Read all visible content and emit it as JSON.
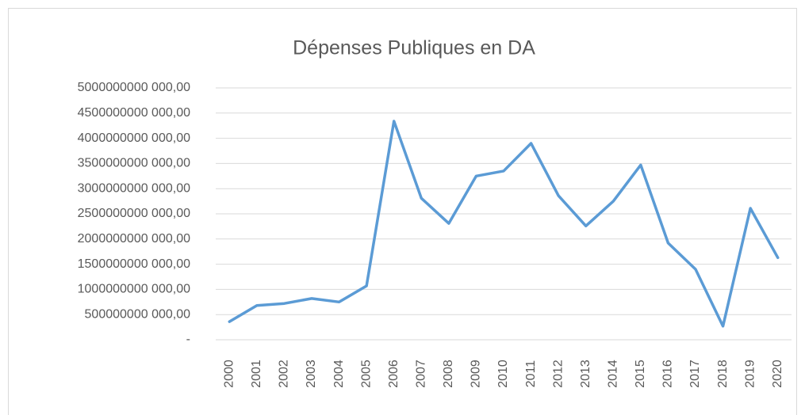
{
  "chart_data": {
    "type": "line",
    "title": "Dépenses Publiques en DA",
    "categories": [
      "2000",
      "2001",
      "2002",
      "2003",
      "2004",
      "2005",
      "2006",
      "2007",
      "2008",
      "2009",
      "2010",
      "2011",
      "2012",
      "2013",
      "2014",
      "2015",
      "2016",
      "2017",
      "2018",
      "2019",
      "2020"
    ],
    "series": [
      {
        "name": "Dépenses Publiques en DA",
        "color": "#5b9bd5",
        "values": [
          360000000000,
          680000000000,
          720000000000,
          820000000000,
          750000000000,
          1070000000000,
          4340000000000,
          2810000000000,
          2310000000000,
          3250000000000,
          3350000000000,
          3900000000000,
          2860000000000,
          2260000000000,
          2750000000000,
          3470000000000,
          1920000000000,
          1400000000000,
          270000000000,
          2610000000000,
          1630000000000
        ]
      }
    ],
    "ylim": [
      0,
      5000000000000
    ],
    "yticks": [
      {
        "value": 0,
        "label": "-"
      },
      {
        "value": 500000000000,
        "label": "500000000 000,00"
      },
      {
        "value": 1000000000000,
        "label": "1000000000 000,00"
      },
      {
        "value": 1500000000000,
        "label": "1500000000 000,00"
      },
      {
        "value": 2000000000000,
        "label": "2000000000 000,00"
      },
      {
        "value": 2500000000000,
        "label": "2500000000 000,00"
      },
      {
        "value": 3000000000000,
        "label": "3000000000 000,00"
      },
      {
        "value": 3500000000000,
        "label": "3500000000 000,00"
      },
      {
        "value": 4000000000000,
        "label": "4000000000 000,00"
      },
      {
        "value": 4500000000000,
        "label": "4500000000 000,00"
      },
      {
        "value": 5000000000000,
        "label": "5000000000 000,00"
      }
    ],
    "grid": true
  }
}
